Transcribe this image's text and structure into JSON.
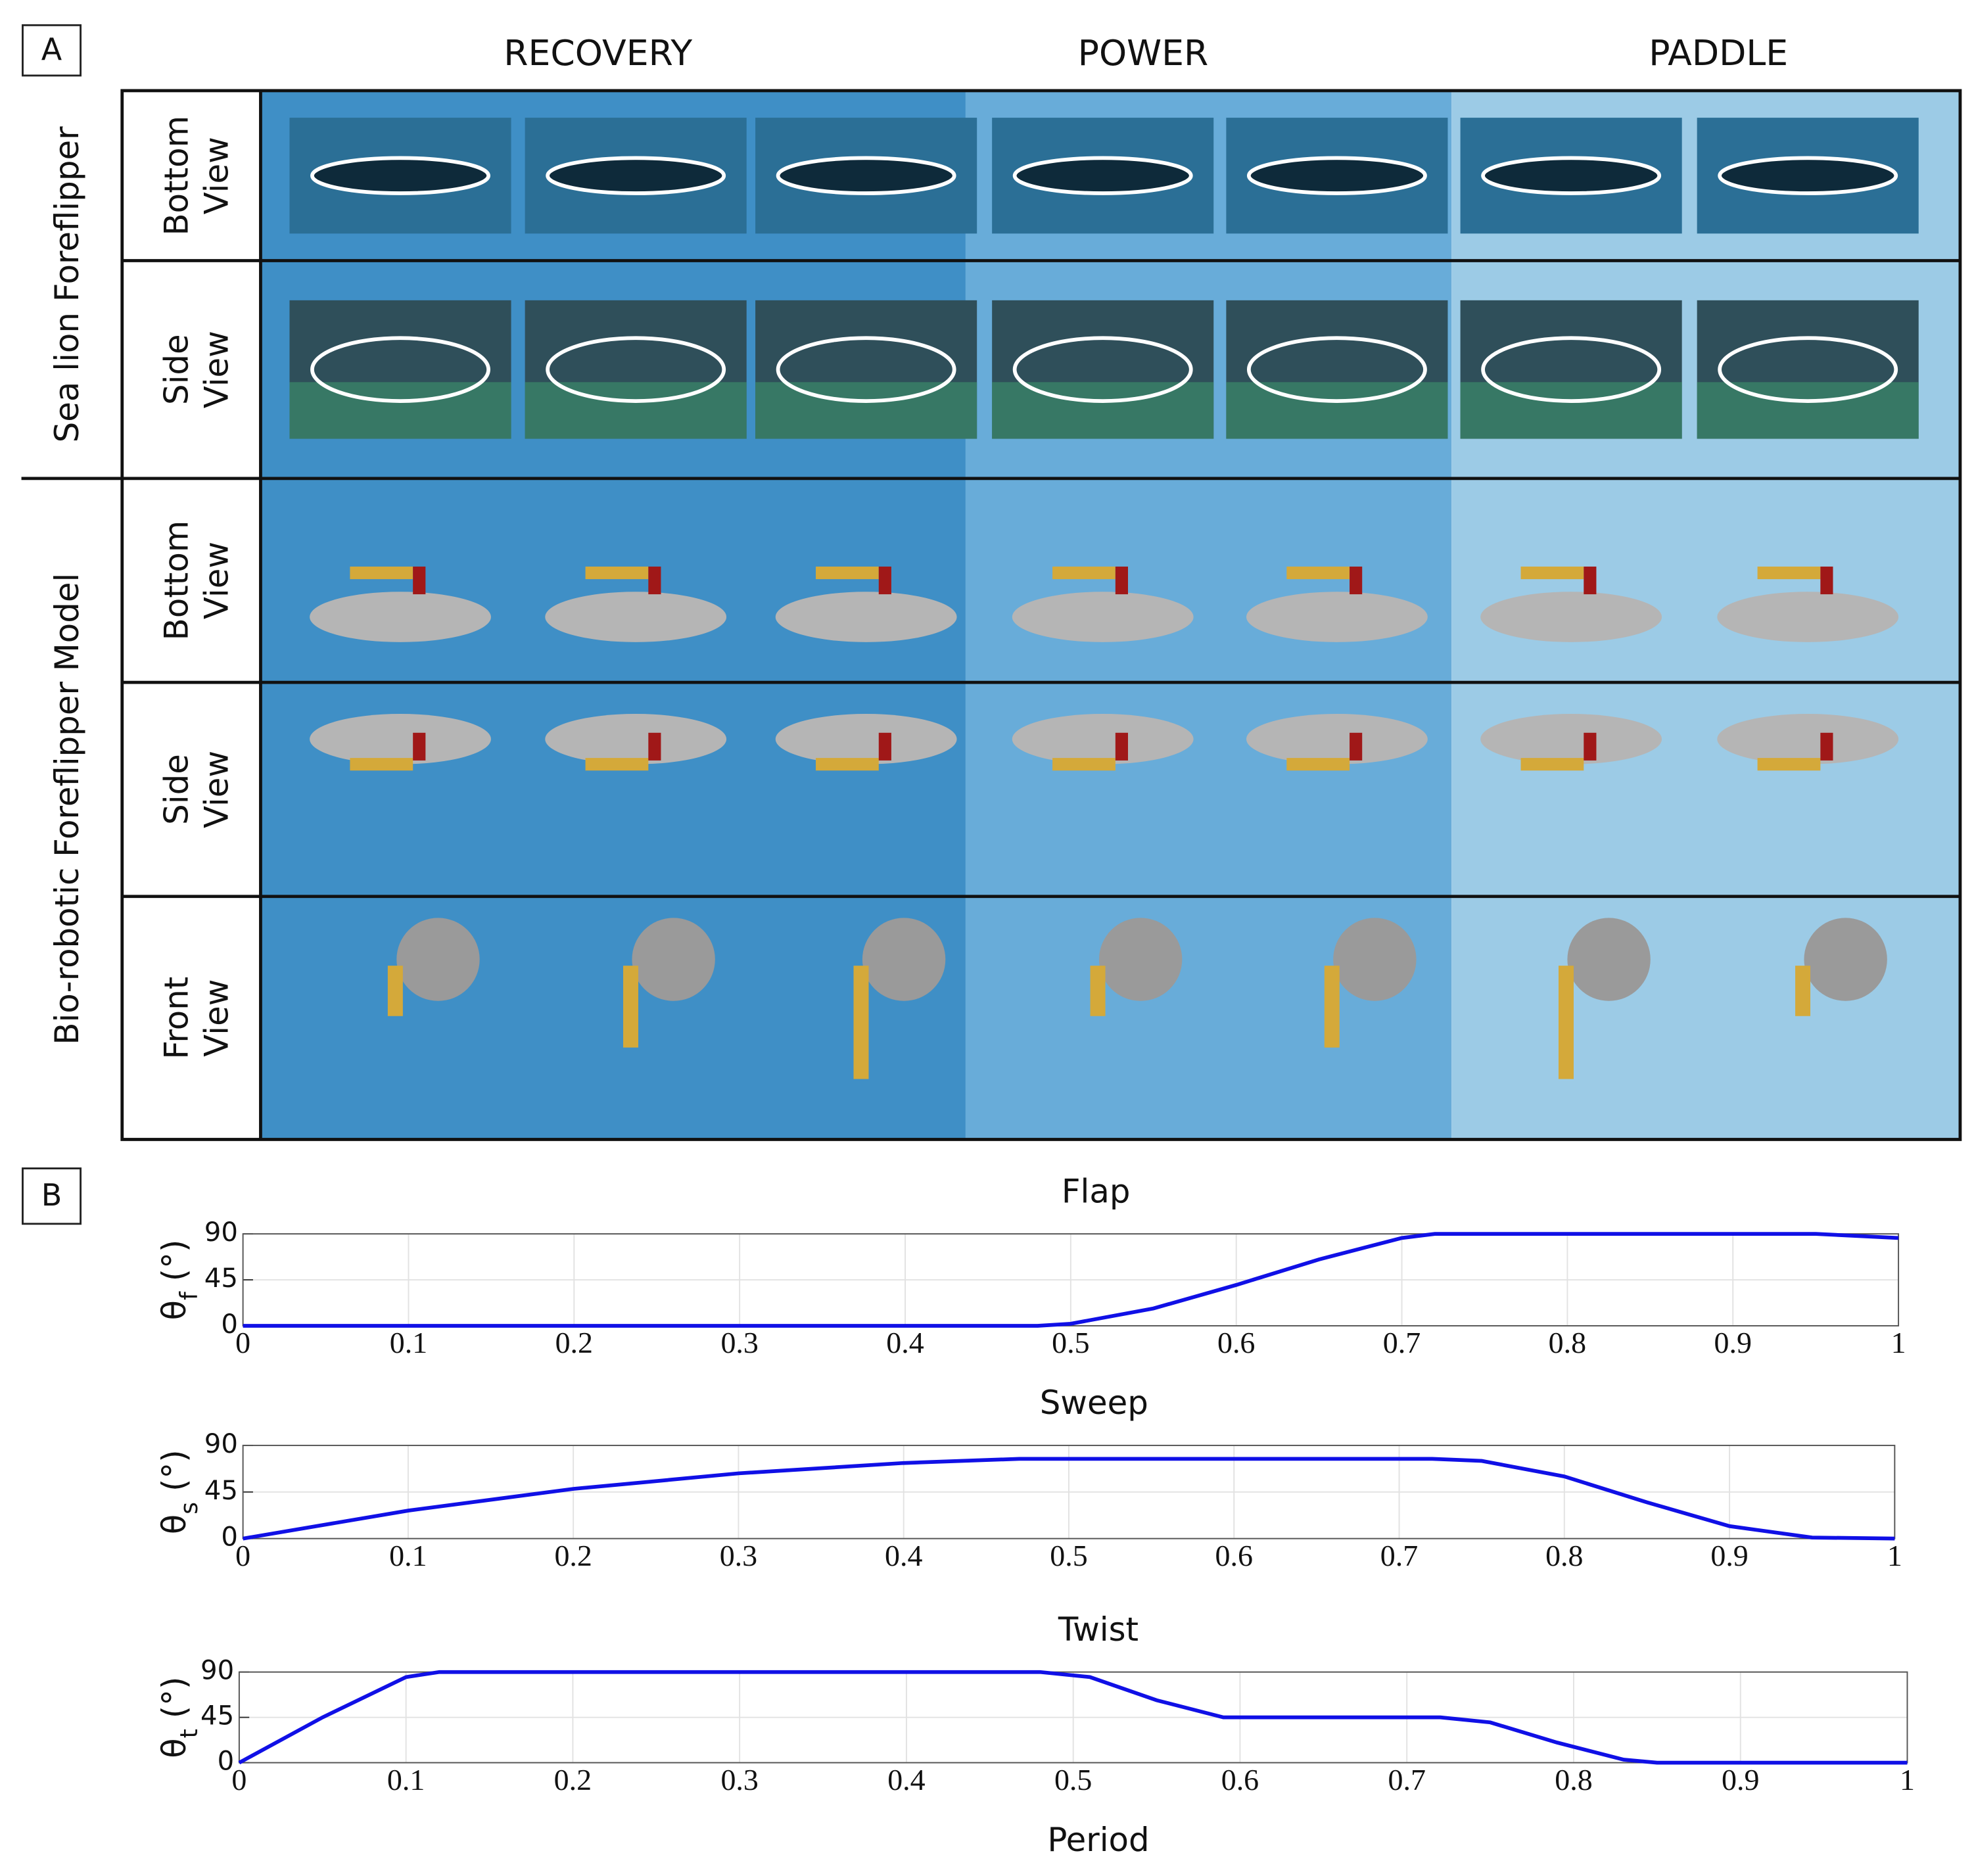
{
  "panel_a": {
    "label": "A",
    "phases": [
      "RECOVERY",
      "POWER",
      "PADDLE"
    ],
    "groups": [
      {
        "label": "Sea lion Foreflipper",
        "rows": [
          [
            "Bottom",
            "View"
          ],
          [
            "Side",
            "View"
          ]
        ]
      },
      {
        "label": "Bio-robotic Foreflipper Model",
        "rows": [
          [
            "Bottom",
            "View"
          ],
          [
            "Side",
            "View"
          ],
          [
            "Front",
            "View"
          ]
        ]
      }
    ]
  },
  "panel_b_label": "B",
  "chart_data": [
    {
      "type": "line",
      "title": "Flap",
      "ylabel": [
        "θ",
        "f",
        " (°)"
      ],
      "color": "#1010e6",
      "grid": true,
      "x": [
        0,
        0.1,
        0.2,
        0.3,
        0.4,
        0.48,
        0.5,
        0.55,
        0.6,
        0.65,
        0.7,
        0.72,
        0.8,
        0.9,
        0.95,
        1
      ],
      "values": [
        0,
        0,
        0,
        0,
        0,
        0,
        2,
        17,
        40,
        65,
        86,
        90,
        90,
        90,
        90,
        86
      ],
      "xlim": [
        0,
        1
      ],
      "ylim": [
        0,
        90
      ],
      "xticks": [
        0,
        0.1,
        0.2,
        0.3,
        0.4,
        0.5,
        0.6,
        0.7,
        0.8,
        0.9,
        1
      ],
      "yticks": [
        0,
        45,
        90
      ]
    },
    {
      "type": "line",
      "title": "Sweep",
      "ylabel": [
        "θ",
        "s",
        " (°)"
      ],
      "color": "#1010e6",
      "grid": true,
      "x": [
        0,
        0.1,
        0.2,
        0.3,
        0.4,
        0.47,
        0.5,
        0.6,
        0.7,
        0.72,
        0.75,
        0.8,
        0.85,
        0.9,
        0.95,
        1
      ],
      "values": [
        0,
        27,
        48,
        63,
        73,
        77,
        77,
        77,
        77,
        77,
        75,
        60,
        35,
        12,
        1,
        0
      ],
      "xlim": [
        0,
        1
      ],
      "ylim": [
        0,
        90
      ],
      "xticks": [
        0,
        0.1,
        0.2,
        0.3,
        0.4,
        0.5,
        0.6,
        0.7,
        0.8,
        0.9,
        1
      ],
      "yticks": [
        0,
        45,
        90
      ]
    },
    {
      "type": "line",
      "title": "Twist",
      "ylabel": [
        "θ",
        "t",
        " (°)"
      ],
      "xlabel": "Period",
      "color": "#1010e6",
      "grid": true,
      "x": [
        0,
        0.05,
        0.1,
        0.12,
        0.3,
        0.48,
        0.51,
        0.55,
        0.59,
        0.65,
        0.72,
        0.75,
        0.79,
        0.83,
        0.85,
        0.9,
        1
      ],
      "values": [
        0,
        45,
        85,
        90,
        90,
        90,
        85,
        62,
        45,
        45,
        45,
        40,
        20,
        3,
        0,
        0,
        0
      ],
      "xlim": [
        0,
        1
      ],
      "ylim": [
        0,
        90
      ],
      "xticks": [
        0,
        0.1,
        0.2,
        0.3,
        0.4,
        0.5,
        0.6,
        0.7,
        0.8,
        0.9,
        1
      ],
      "yticks": [
        0,
        45,
        90
      ]
    }
  ]
}
